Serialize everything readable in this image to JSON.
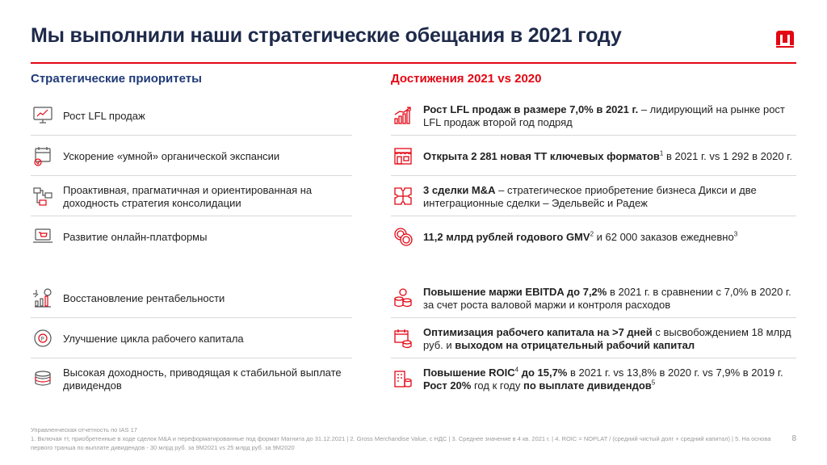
{
  "slide": {
    "title": "Мы выполнили наши стратегические обещания в 2021 году",
    "page_number": "8"
  },
  "colors": {
    "accent_red": "#e30613",
    "navy": "#1f3a78",
    "title_navy": "#1e2a4a",
    "divider": "#d9d9d9"
  },
  "left": {
    "heading": "Стратегические приоритеты",
    "items": [
      {
        "icon": "monitor-chart-icon",
        "text": "Рост LFL продаж"
      },
      {
        "icon": "calendar-check-icon",
        "text": "Ускорение «умной» органической экспансии"
      },
      {
        "icon": "flow-diagram-icon",
        "text": "Проактивная, прагматичная и ориентированная на доходность стратегия консолидации"
      },
      {
        "icon": "laptop-cart-icon",
        "text": "Развитие онлайн-платформы"
      },
      {
        "icon": "coin-growth-icon",
        "text": "Восстановление рентабельности"
      },
      {
        "icon": "coin-cycle-icon",
        "text": "Улучшение цикла рабочего капитала"
      },
      {
        "icon": "coin-stack-icon",
        "text": "Высокая доходность, приводящая к стабильной выплате дивидендов"
      }
    ]
  },
  "right": {
    "heading": "Достижения 2021 vs 2020",
    "items": [
      {
        "icon": "growth-bars-icon",
        "b1": "Рост LFL продаж в размере 7,0% в 2021 г.",
        "t1": " – лидирующий на рынке рост LFL продаж второй год подряд"
      },
      {
        "icon": "store-icon",
        "b1": "Открыта 2 281 новая ТТ ключевых форматов",
        "s1": "1",
        "t1": " в 2021 г. vs 1 292 в 2020 г."
      },
      {
        "icon": "puzzle-icon",
        "b1": "3 сделки M&A",
        "t1": " – стратегическое приобретение бизнеса Дикси и две интеграционные сделки – Эдельвейс и Радеж"
      },
      {
        "icon": "coins-icon",
        "b1": "11,2 млрд рублей годового GMV",
        "s1": "2",
        "t1": " и 62 000 заказов ежедневно",
        "s2": "3"
      },
      {
        "icon": "coins-stack-icon",
        "b1": "Повышение маржи EBITDA до 7,2%",
        "t1": " в 2021 г. в сравнении с 7,0% в 2020 г. за счет роста валовой маржи и контроля расходов"
      },
      {
        "icon": "calendar-coins-icon",
        "b1": "Оптимизация рабочего капитала на >7 дней",
        "t1": " с высвобождением 18 млрд руб. и ",
        "b2": "выходом на отрицательный рабочий капитал"
      },
      {
        "icon": "building-coins-icon",
        "b1": "Повышение ROIC",
        "s1": "4",
        "b1b": " до 15,7%",
        "t1": " в 2021 г. vs 13,8% в 2020 г. vs 7,9% в 2019 г. ",
        "b2": "Рост 20%",
        "t2": " год к году ",
        "b3": "по выплате дивидендов",
        "s2": "5"
      }
    ]
  },
  "footnotes": {
    "line1": "Управленческая отчетность по IAS 17",
    "line2": "1. Включая тт, приобретенные в ходе сделок M&A и переформатированные под формат Магнита до 31.12.2021 | 2. Gross Merchandise Value, с НДС | 3. Среднее значение в 4 кв. 2021 г. | 4. ROIC = NOPLAT / (средний чистый долг + средний капитал) | 5. На основа первого транша по выплате дивидендов - 30 млрд руб. за 9М2021 vs 25 млрд руб. за 9М2020"
  }
}
